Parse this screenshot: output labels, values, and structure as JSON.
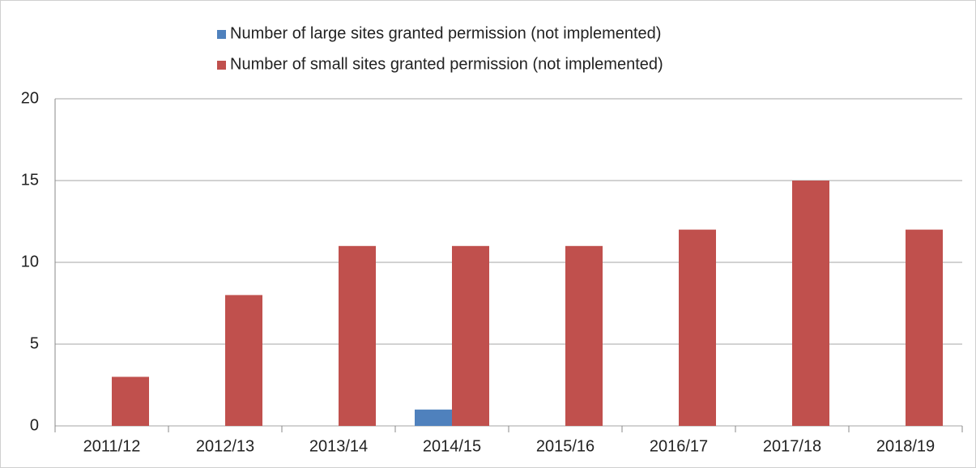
{
  "chart_data": {
    "type": "bar",
    "categories": [
      "2011/12",
      "2012/13",
      "2013/14",
      "2014/15",
      "2015/16",
      "2016/17",
      "2017/18",
      "2018/19"
    ],
    "series": [
      {
        "name": "Number of large sites granted permission (not implemented)",
        "color": "#4f81bd",
        "values": [
          0,
          0,
          0,
          1,
          0,
          0,
          0,
          0
        ]
      },
      {
        "name": "Number of small sites granted permission (not implemented)",
        "color": "#c0504d",
        "values": [
          3,
          8,
          11,
          11,
          11,
          12,
          15,
          12
        ]
      }
    ],
    "ylim": [
      0,
      20
    ],
    "yticks": [
      0,
      5,
      10,
      15,
      20
    ],
    "grid": true,
    "legend": "top"
  }
}
